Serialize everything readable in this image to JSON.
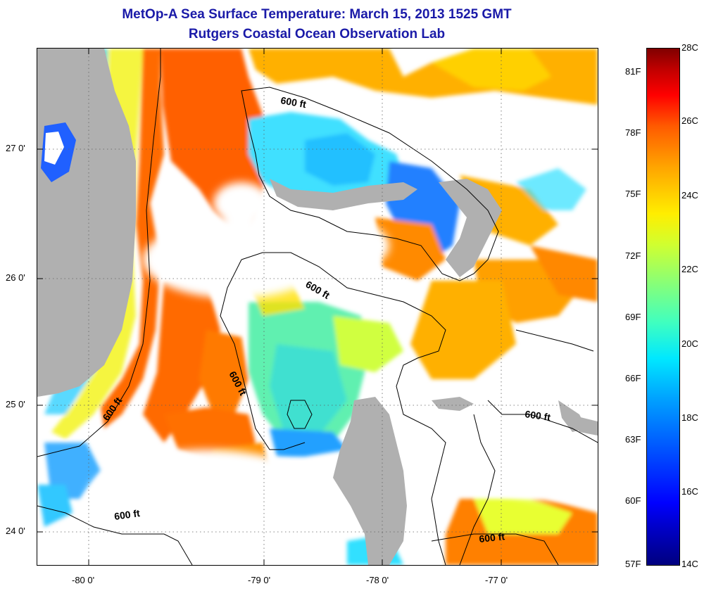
{
  "title_line1": "MetOp-A Sea Surface Temperature:  March 15, 2013 1525 GMT",
  "title_line2": "Rutgers Coastal Ocean Observation Lab",
  "latitude_labels": [
    "27 0'",
    "26 0'",
    "25 0'",
    "24 0'"
  ],
  "longitude_labels": [
    "-80 0'",
    "-79 0'",
    "-78 0'",
    "-77 0'"
  ],
  "contour_labels": [
    "600 ft",
    "600 ft",
    "600 ft",
    "600 ft",
    "600 ft",
    "600 ft"
  ],
  "colorbar": {
    "fahrenheit_labels": [
      "81F",
      "78F",
      "75F",
      "72F",
      "69F",
      "66F",
      "63F",
      "60F",
      "57F"
    ],
    "celsius_labels": [
      "28C",
      "26C",
      "24C",
      "22C",
      "20C",
      "18C",
      "16C",
      "14C"
    ],
    "range_c": [
      14,
      28
    ]
  },
  "colors": {
    "title": "#1a1aa8",
    "land": "#b0b0b0",
    "no_data": "#ffffff"
  }
}
